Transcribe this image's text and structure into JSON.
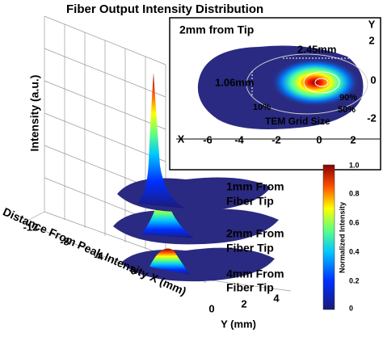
{
  "figure": {
    "title": "Fiber Output Intensity Distribution",
    "inset": {
      "title": "2mm from Tip",
      "width_label": "2.45mm",
      "height_label": "1.06mm",
      "contour_labels": [
        "10%",
        "90%",
        "50%"
      ],
      "grid_label": "TEM Grid Size",
      "x_axis_label": "X",
      "y_axis_label": "Y",
      "x_ticks": [
        "-6",
        "-4",
        "-2",
        "0",
        "2"
      ],
      "y_ticks": [
        "2",
        "0",
        "-2"
      ]
    },
    "main": {
      "z_axis_label": "Intensity (a.u.)",
      "x_axis_label": "Distance From Peak Intensity X (mm)",
      "x_ticks": [
        "-12",
        "-8",
        "-4",
        "0"
      ],
      "y_axis_label": "Y (mm)",
      "y_ticks": [
        "0",
        "2",
        "4"
      ],
      "layers": [
        {
          "line1": "1mm From",
          "line2": "Fiber Tip"
        },
        {
          "line1": "2mm From",
          "line2": "Fiber Tip"
        },
        {
          "line1": "4mm From",
          "line2": "Fiber Tip"
        }
      ]
    },
    "colorbar": {
      "label": "Normalized Intensity",
      "ticks": [
        "1.0",
        "0.8",
        "0.6",
        "0.4",
        "0.2",
        "0"
      ]
    }
  }
}
